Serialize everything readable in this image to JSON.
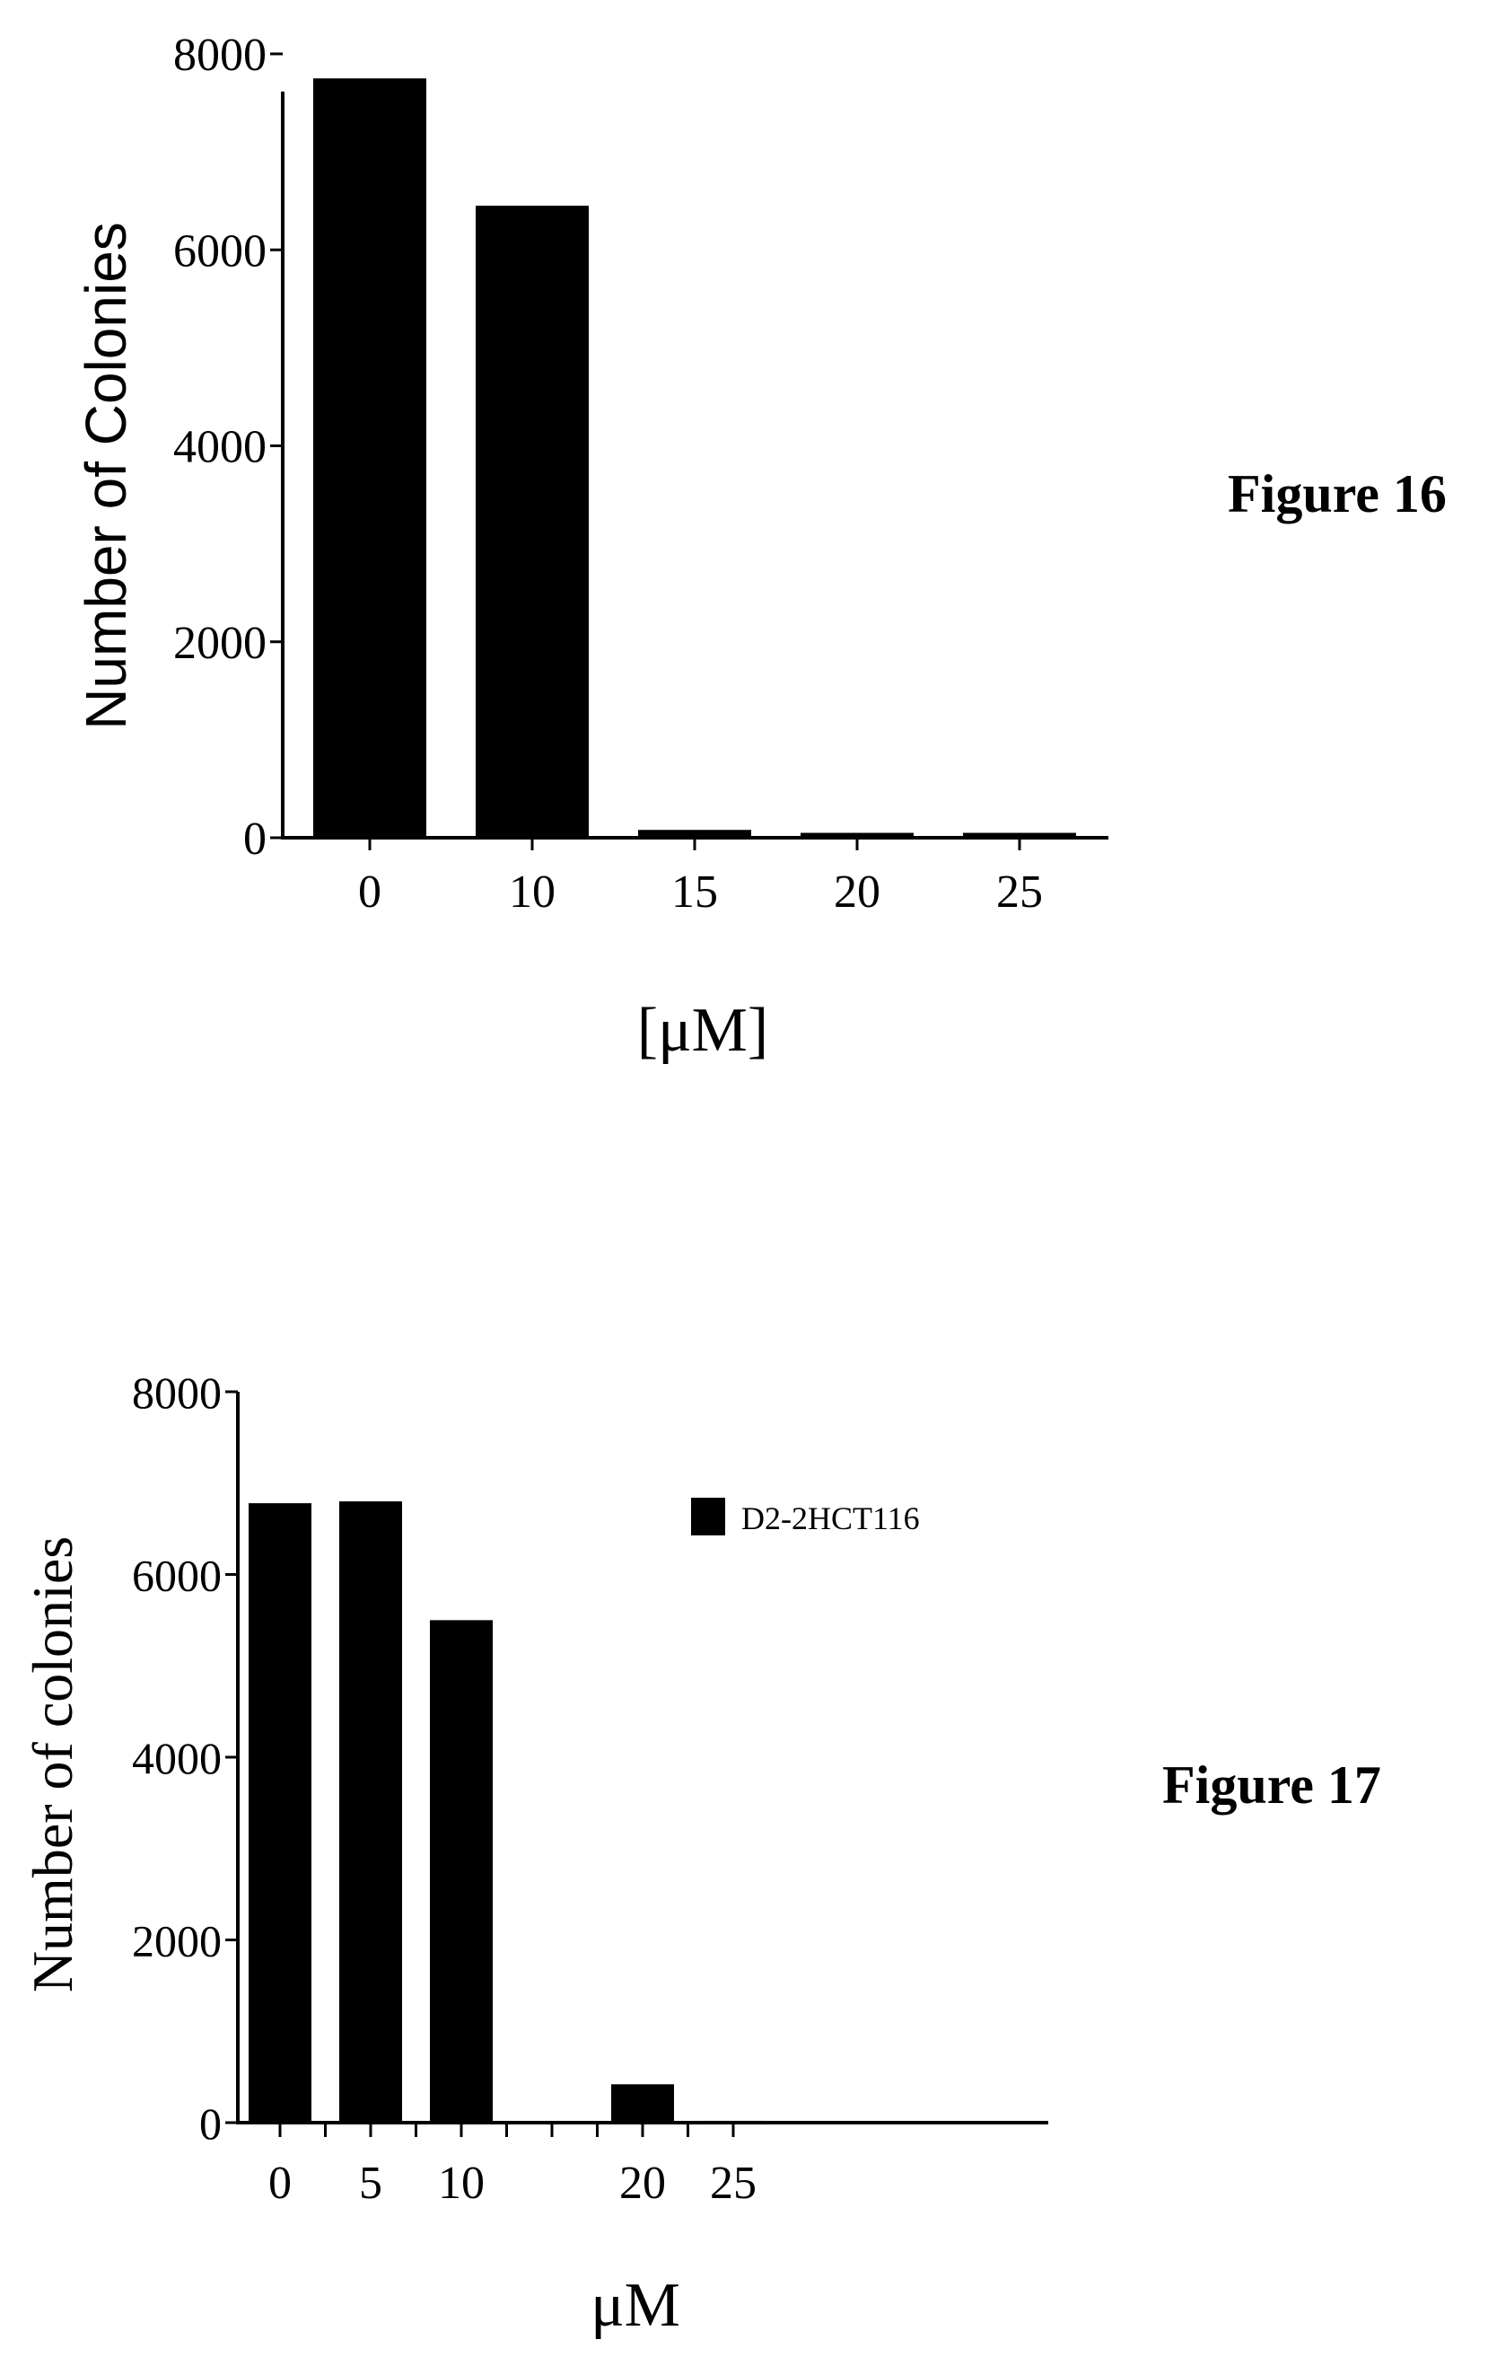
{
  "chart_data": [
    {
      "type": "bar",
      "categories": [
        "0",
        "10",
        "15",
        "20",
        "25"
      ],
      "values": [
        7750,
        6450,
        80,
        50,
        50
      ],
      "title": "",
      "xlabel": "[μM]",
      "ylabel": "Number of Colonies",
      "ylim": [
        0,
        8000
      ],
      "yticks": [
        "0",
        "2000",
        "4000",
        "6000",
        "8000"
      ],
      "caption": "Figure 16",
      "grid": false,
      "bar_color": "#000000"
    },
    {
      "type": "bar",
      "x": [
        0,
        5,
        10,
        20,
        25
      ],
      "x_tick_labels": [
        "0",
        "5",
        "10",
        "20",
        "25"
      ],
      "x_minor_ticks": [
        0,
        2.5,
        5,
        7.5,
        10,
        12.5,
        15,
        17.5,
        20,
        22.5,
        25
      ],
      "series": [
        {
          "name": "D2-2HCT116",
          "values": [
            6780,
            6800,
            5500,
            420,
            20
          ]
        }
      ],
      "title": "",
      "xlabel": "μM",
      "ylabel": "Number of colonies",
      "ylim": [
        0,
        8000
      ],
      "yticks": [
        "0",
        "2000",
        "4000",
        "6000",
        "8000"
      ],
      "legend_position": "top-right",
      "caption": "Figure 17",
      "grid": false,
      "bar_color": "#000000"
    }
  ]
}
